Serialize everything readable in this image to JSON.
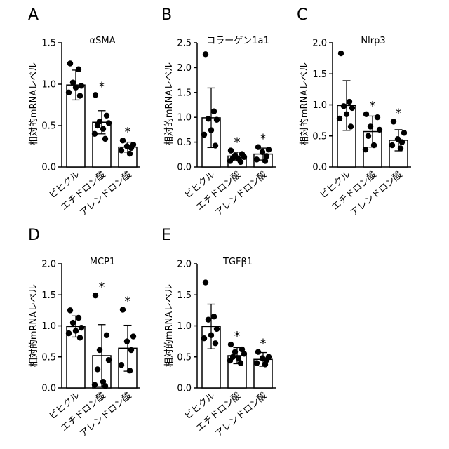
{
  "chart_data": [
    {
      "type": "bar",
      "panel": "A",
      "title": "αSMA",
      "ylabel": "相対的mRNAレベル",
      "categories": [
        "ビヒクル",
        "エチドロン酸",
        "アレンドロン酸"
      ],
      "ylim": [
        0,
        1.5
      ],
      "yticks": [
        "0.0",
        "0.5",
        "1.0",
        "1.5"
      ],
      "means": [
        0.99,
        0.54,
        0.24
      ],
      "sd": [
        0.18,
        0.14,
        0.06
      ],
      "points": [
        [
          1.25,
          1.18,
          1.02,
          0.98,
          0.96,
          0.9,
          0.86
        ],
        [
          0.87,
          0.62,
          0.55,
          0.53,
          0.5,
          0.46,
          0.4,
          0.34
        ],
        [
          0.32,
          0.27,
          0.25,
          0.23,
          0.2,
          0.16
        ]
      ],
      "significance": [
        "",
        "*",
        "*"
      ]
    },
    {
      "type": "bar",
      "panel": "B",
      "title": "コラーゲン1a1",
      "ylabel": "相対的mRNAレベル",
      "categories": [
        "ビヒクル",
        "エチドロン酸",
        "アレンドロン酸"
      ],
      "ylim": [
        0,
        2.5
      ],
      "yticks": [
        "0.0",
        "0.5",
        "1.0",
        "1.5",
        "2.0",
        "2.5"
      ],
      "means": [
        0.99,
        0.22,
        0.26
      ],
      "sd": [
        0.6,
        0.08,
        0.12
      ],
      "points": [
        [
          2.27,
          1.12,
          0.97,
          0.95,
          0.74,
          0.65,
          0.43
        ],
        [
          0.33,
          0.26,
          0.23,
          0.2,
          0.18,
          0.16,
          0.12,
          0.1
        ],
        [
          0.4,
          0.35,
          0.3,
          0.22,
          0.15,
          0.12
        ]
      ],
      "significance": [
        "",
        "*",
        "*"
      ]
    },
    {
      "type": "bar",
      "panel": "C",
      "title": "Nlrp3",
      "ylabel": "相対的mRNAレベル",
      "categories": [
        "ビヒクル",
        "エチドロン酸",
        "アレンドロン酸"
      ],
      "ylim": [
        0,
        2.0
      ],
      "yticks": [
        "0.0",
        "0.5",
        "1.0",
        "1.5",
        "2.0"
      ],
      "means": [
        0.99,
        0.57,
        0.43
      ],
      "sd": [
        0.4,
        0.25,
        0.17
      ],
      "points": [
        [
          1.83,
          1.05,
          0.98,
          0.95,
          0.85,
          0.78,
          0.65
        ],
        [
          0.85,
          0.8,
          0.65,
          0.6,
          0.5,
          0.35,
          0.28
        ],
        [
          0.73,
          0.55,
          0.45,
          0.4,
          0.35,
          0.3
        ]
      ],
      "significance": [
        "",
        "*",
        "*"
      ]
    },
    {
      "type": "bar",
      "panel": "D",
      "title": "MCP1",
      "ylabel": "相対的mRNAレベル",
      "categories": [
        "ビヒクル",
        "エチドロン酸",
        "アレンドロン酸"
      ],
      "ylim": [
        0,
        2.0
      ],
      "yticks": [
        "0.0",
        "0.5",
        "1.0",
        "1.5",
        "2.0"
      ],
      "means": [
        0.99,
        0.52,
        0.64
      ],
      "sd": [
        0.17,
        0.5,
        0.37
      ],
      "points": [
        [
          1.25,
          1.13,
          1.05,
          0.97,
          0.92,
          0.88,
          0.81
        ],
        [
          1.49,
          0.85,
          0.61,
          0.45,
          0.3,
          0.1,
          0.05,
          0.03
        ],
        [
          1.26,
          0.83,
          0.75,
          0.61,
          0.37,
          0.28
        ]
      ],
      "significance": [
        "",
        "*",
        "*"
      ]
    },
    {
      "type": "bar",
      "panel": "E",
      "title": "TGFβ1",
      "ylabel": "相対的mRNAレベル",
      "categories": [
        "ビヒクル",
        "エチドロン酸",
        "アレンドロン酸"
      ],
      "ylim": [
        0,
        2.0
      ],
      "yticks": [
        "0.0",
        "0.5",
        "1.0",
        "1.5",
        "2.0"
      ],
      "means": [
        0.99,
        0.52,
        0.46
      ],
      "sd": [
        0.36,
        0.13,
        0.11
      ],
      "points": [
        [
          1.7,
          1.15,
          1.1,
          0.95,
          0.85,
          0.8,
          0.72
        ],
        [
          0.7,
          0.62,
          0.58,
          0.55,
          0.5,
          0.48,
          0.44,
          0.4
        ],
        [
          0.58,
          0.5,
          0.48,
          0.45,
          0.4,
          0.38
        ]
      ],
      "significance": [
        "",
        "*",
        "*"
      ]
    }
  ]
}
